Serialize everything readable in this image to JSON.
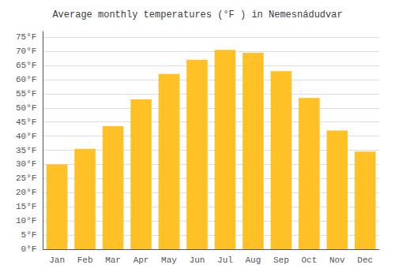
{
  "chart_data": {
    "type": "bar",
    "title": "Average monthly temperatures (°F ) in Nemesnádudvar",
    "categories": [
      "Jan",
      "Feb",
      "Mar",
      "Apr",
      "May",
      "Jun",
      "Jul",
      "Aug",
      "Sep",
      "Oct",
      "Nov",
      "Dec"
    ],
    "values": [
      30,
      35.5,
      43.5,
      53,
      62,
      67,
      70.5,
      69.5,
      63,
      53.5,
      42,
      34.5
    ],
    "color": "#FFC125",
    "ylim": [
      0,
      77
    ],
    "yticks": [
      {
        "value": 0,
        "label": "0°F"
      },
      {
        "value": 5,
        "label": "5°F"
      },
      {
        "value": 10,
        "label": "10°F"
      },
      {
        "value": 15,
        "label": "15°F"
      },
      {
        "value": 20,
        "label": "20°F"
      },
      {
        "value": 25,
        "label": "25°F"
      },
      {
        "value": 30,
        "label": "30°F"
      },
      {
        "value": 35,
        "label": "35°F"
      },
      {
        "value": 40,
        "label": "40°F"
      },
      {
        "value": 45,
        "label": "45°F"
      },
      {
        "value": 50,
        "label": "50°F"
      },
      {
        "value": 55,
        "label": "55°F"
      },
      {
        "value": 60,
        "label": "60°F"
      },
      {
        "value": 65,
        "label": "65°F"
      },
      {
        "value": 70,
        "label": "70°F"
      },
      {
        "value": 75,
        "label": "75°F"
      }
    ],
    "grid": true
  }
}
